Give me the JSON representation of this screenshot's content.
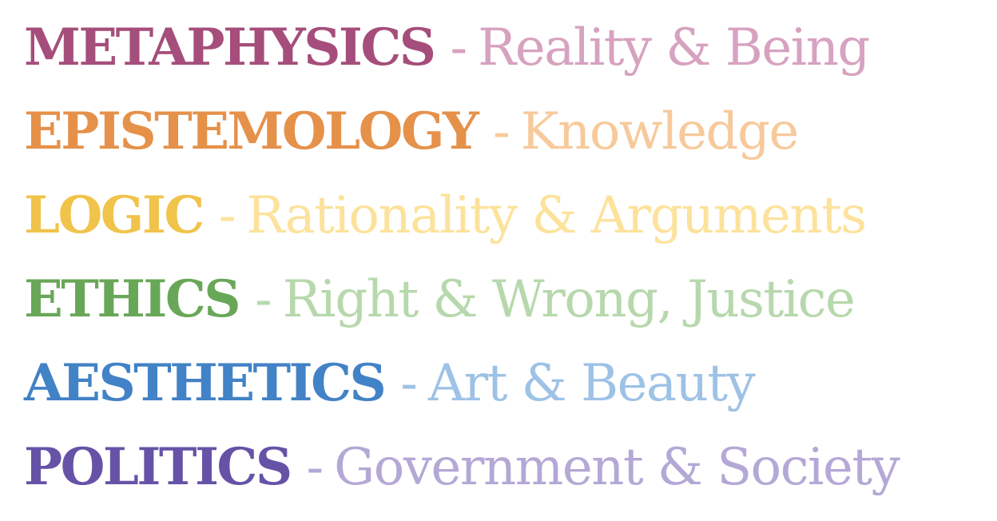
{
  "separator": "-",
  "branches": [
    {
      "term": "METAPHYSICS",
      "description": "Reality & Being",
      "term_color": "#A54E7B",
      "description_color": "#D7A2C0"
    },
    {
      "term": "EPISTEMOLOGY",
      "description": "Knowledge",
      "term_color": "#E5914A",
      "description_color": "#F7C99B"
    },
    {
      "term": "LOGIC",
      "description": "Rationality & Arguments",
      "term_color": "#F0C34A",
      "description_color": "#FCE29B"
    },
    {
      "term": "ETHICS",
      "description": "Right & Wrong, Justice",
      "term_color": "#69A758",
      "description_color": "#B7D8AC"
    },
    {
      "term": "AESTHETICS",
      "description": "Art & Beauty",
      "term_color": "#4282C6",
      "description_color": "#9EC2E6"
    },
    {
      "term": "POLITICS",
      "description": "Government & Society",
      "term_color": "#6653A7",
      "description_color": "#B4A8D6"
    }
  ]
}
